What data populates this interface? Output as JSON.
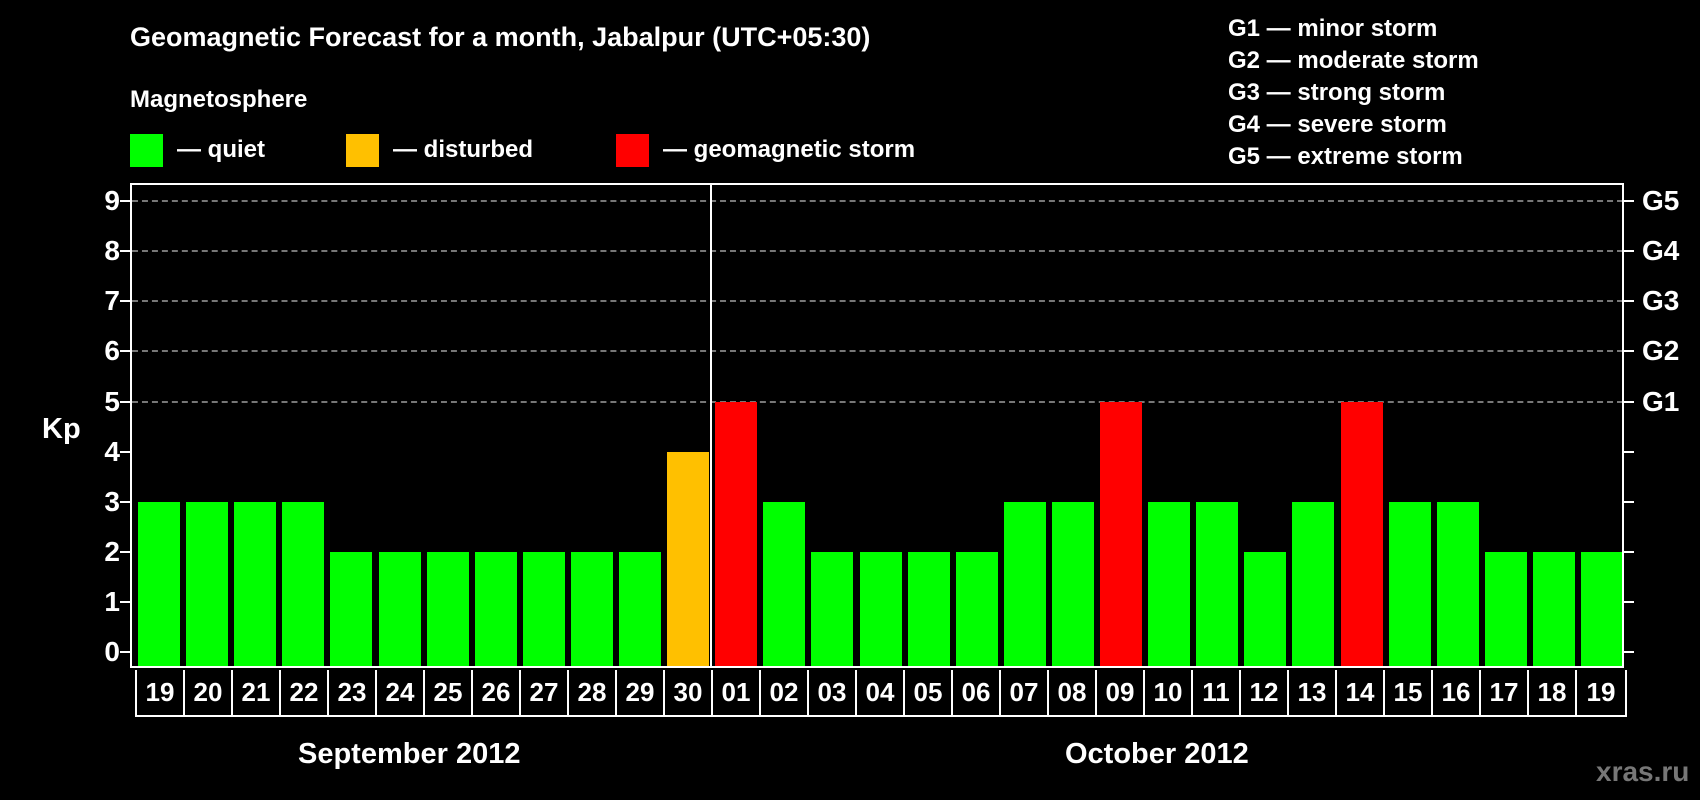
{
  "header": {
    "title": "Geomagnetic Forecast for a month, Jabalpur (UTC+05:30)",
    "section_label": "Magnetosphere"
  },
  "legend": [
    {
      "label": "— quiet",
      "color": "#00ff00"
    },
    {
      "label": "— disturbed",
      "color": "#ffc000"
    },
    {
      "label": "— geomagnetic storm",
      "color": "#ff0000"
    }
  ],
  "storm_scale": [
    "G1 — minor storm",
    "G2 — moderate storm",
    "G3 — strong storm",
    "G4 — severe storm",
    "G5 — extreme storm"
  ],
  "axes": {
    "ylabel": "Kp",
    "yticks": [
      "0",
      "1",
      "2",
      "3",
      "4",
      "5",
      "6",
      "7",
      "8",
      "9"
    ],
    "right_labels": {
      "5": "G1",
      "6": "G2",
      "7": "G3",
      "8": "G4",
      "9": "G5"
    }
  },
  "months": {
    "left": "September 2012",
    "right": "October 2012"
  },
  "watermark": "xras.ru",
  "colors": {
    "quiet": "#00ff00",
    "disturbed": "#ffc000",
    "storm": "#ff0000"
  },
  "chart_data": {
    "type": "bar",
    "title": "Geomagnetic Forecast for a month, Jabalpur (UTC+05:30)",
    "xlabel": "",
    "ylabel": "Kp",
    "ylim": [
      0,
      9
    ],
    "grid": "dashed horizontal at 5-9",
    "categories": [
      "19",
      "20",
      "21",
      "22",
      "23",
      "24",
      "25",
      "26",
      "27",
      "28",
      "29",
      "30",
      "01",
      "02",
      "03",
      "04",
      "05",
      "06",
      "07",
      "08",
      "09",
      "10",
      "11",
      "12",
      "13",
      "14",
      "15",
      "16",
      "17",
      "18",
      "19"
    ],
    "month_groups": [
      {
        "label": "September 2012",
        "days": [
          "19",
          "20",
          "21",
          "22",
          "23",
          "24",
          "25",
          "26",
          "27",
          "28",
          "29",
          "30"
        ]
      },
      {
        "label": "October 2012",
        "days": [
          "01",
          "02",
          "03",
          "04",
          "05",
          "06",
          "07",
          "08",
          "09",
          "10",
          "11",
          "12",
          "13",
          "14",
          "15",
          "16",
          "17",
          "18",
          "19"
        ]
      }
    ],
    "values": [
      3,
      3,
      3,
      3,
      2,
      2,
      2,
      2,
      2,
      2,
      2,
      4,
      5,
      3,
      2,
      2,
      2,
      2,
      3,
      3,
      5,
      3,
      3,
      2,
      3,
      5,
      3,
      3,
      2,
      2,
      2
    ],
    "status": [
      "quiet",
      "quiet",
      "quiet",
      "quiet",
      "quiet",
      "quiet",
      "quiet",
      "quiet",
      "quiet",
      "quiet",
      "quiet",
      "disturbed",
      "storm",
      "quiet",
      "quiet",
      "quiet",
      "quiet",
      "quiet",
      "quiet",
      "quiet",
      "storm",
      "quiet",
      "quiet",
      "quiet",
      "quiet",
      "storm",
      "quiet",
      "quiet",
      "quiet",
      "quiet",
      "quiet"
    ],
    "legend": [
      "quiet",
      "disturbed",
      "geomagnetic storm"
    ]
  }
}
